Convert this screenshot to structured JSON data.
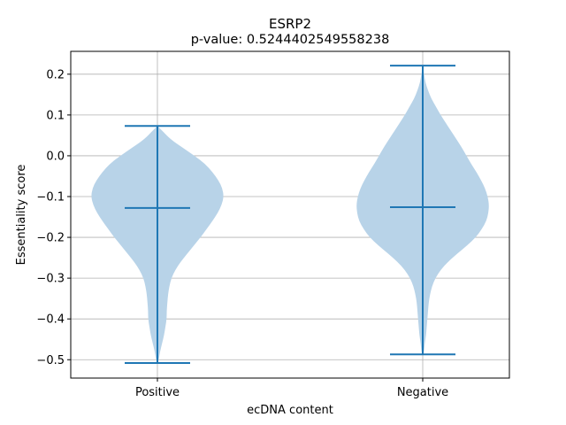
{
  "chart_data": {
    "type": "violin",
    "title": "ESRP2",
    "subtitle": "p-value: 0.5244402549558238",
    "xlabel": "ecDNA content",
    "ylabel": "Essentiality score",
    "categories": [
      "Positive",
      "Negative"
    ],
    "ylim": [
      -0.545,
      0.256
    ],
    "yticks": [
      -0.5,
      -0.4,
      -0.3,
      -0.2,
      -0.1,
      0.0,
      0.1,
      0.2
    ],
    "ytick_labels": [
      "−0.5",
      "−0.4",
      "−0.3",
      "−0.2",
      "−0.1",
      "0.0",
      "0.1",
      "0.2"
    ],
    "grid": true,
    "colors": {
      "body": "#b8d3e8",
      "lines": "#1f77b4",
      "grid": "#b0b0b0"
    },
    "violins": [
      {
        "category": "Positive",
        "min": -0.508,
        "max": 0.073,
        "median": -0.128,
        "profile": [
          [
            0.073,
            0.0
          ],
          [
            0.06,
            0.08
          ],
          [
            0.04,
            0.2
          ],
          [
            0.02,
            0.38
          ],
          [
            0.0,
            0.56
          ],
          [
            -0.02,
            0.72
          ],
          [
            -0.04,
            0.83
          ],
          [
            -0.06,
            0.92
          ],
          [
            -0.08,
            0.98
          ],
          [
            -0.1,
            1.0
          ],
          [
            -0.12,
            0.97
          ],
          [
            -0.14,
            0.91
          ],
          [
            -0.16,
            0.83
          ],
          [
            -0.18,
            0.74
          ],
          [
            -0.2,
            0.65
          ],
          [
            -0.22,
            0.55
          ],
          [
            -0.24,
            0.45
          ],
          [
            -0.26,
            0.35
          ],
          [
            -0.28,
            0.27
          ],
          [
            -0.3,
            0.21
          ],
          [
            -0.32,
            0.18
          ],
          [
            -0.34,
            0.16
          ],
          [
            -0.36,
            0.15
          ],
          [
            -0.38,
            0.14
          ],
          [
            -0.4,
            0.14
          ],
          [
            -0.42,
            0.12
          ],
          [
            -0.44,
            0.1
          ],
          [
            -0.46,
            0.07
          ],
          [
            -0.48,
            0.04
          ],
          [
            -0.5,
            0.02
          ],
          [
            -0.508,
            0.0
          ]
        ]
      },
      {
        "category": "Negative",
        "min": -0.487,
        "max": 0.221,
        "median": -0.126,
        "profile": [
          [
            0.221,
            0.0
          ],
          [
            0.2,
            0.02
          ],
          [
            0.18,
            0.04
          ],
          [
            0.16,
            0.08
          ],
          [
            0.14,
            0.13
          ],
          [
            0.12,
            0.2
          ],
          [
            0.1,
            0.27
          ],
          [
            0.08,
            0.35
          ],
          [
            0.06,
            0.43
          ],
          [
            0.04,
            0.51
          ],
          [
            0.02,
            0.59
          ],
          [
            0.0,
            0.66
          ],
          [
            -0.02,
            0.73
          ],
          [
            -0.04,
            0.81
          ],
          [
            -0.06,
            0.88
          ],
          [
            -0.08,
            0.94
          ],
          [
            -0.1,
            0.98
          ],
          [
            -0.12,
            1.0
          ],
          [
            -0.14,
            0.99
          ],
          [
            -0.16,
            0.96
          ],
          [
            -0.18,
            0.89
          ],
          [
            -0.2,
            0.8
          ],
          [
            -0.22,
            0.67
          ],
          [
            -0.24,
            0.52
          ],
          [
            -0.26,
            0.38
          ],
          [
            -0.28,
            0.27
          ],
          [
            -0.3,
            0.19
          ],
          [
            -0.32,
            0.14
          ],
          [
            -0.34,
            0.11
          ],
          [
            -0.36,
            0.09
          ],
          [
            -0.38,
            0.08
          ],
          [
            -0.4,
            0.07
          ],
          [
            -0.42,
            0.06
          ],
          [
            -0.44,
            0.05
          ],
          [
            -0.46,
            0.03
          ],
          [
            -0.48,
            0.02
          ],
          [
            -0.487,
            0.0
          ]
        ]
      }
    ]
  }
}
